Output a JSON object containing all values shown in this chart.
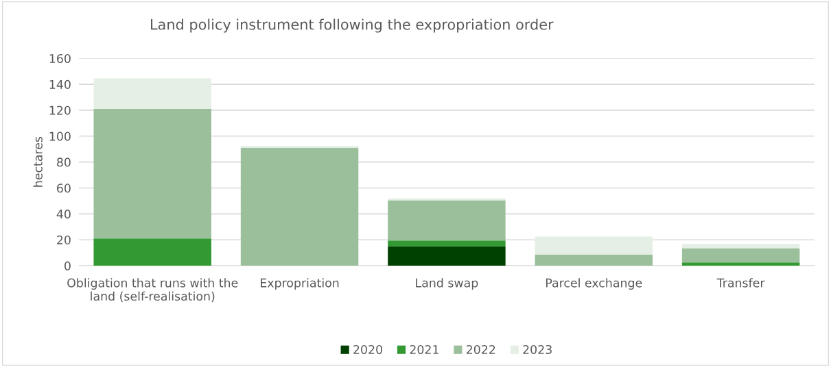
{
  "chart_data": {
    "type": "bar",
    "title": "Land policy instrument following the expropriation order",
    "ylabel": "hectares",
    "categories": [
      "Obligation that runs with the land (self-realisation)",
      "Expropriation",
      "Land swap",
      "Parcel exchange",
      "Transfer"
    ],
    "stacked": true,
    "series": [
      {
        "name": "2020",
        "color": "#004000",
        "values": [
          0,
          0,
          15,
          0,
          0
        ]
      },
      {
        "name": "2021",
        "color": "#339933",
        "values": [
          21,
          0,
          4.5,
          0,
          2.5
        ]
      },
      {
        "name": "2022",
        "color": "#9bbf9b",
        "values": [
          100,
          91,
          31,
          8.5,
          11
        ]
      },
      {
        "name": "2023",
        "color": "#e6efe6",
        "values": [
          23.5,
          1.5,
          1.5,
          14,
          3.5
        ]
      }
    ],
    "ylim": [
      0,
      160
    ],
    "yticks": [
      0,
      20,
      40,
      60,
      80,
      100,
      120,
      140,
      160
    ],
    "grid": "y",
    "legend": "bottom"
  }
}
